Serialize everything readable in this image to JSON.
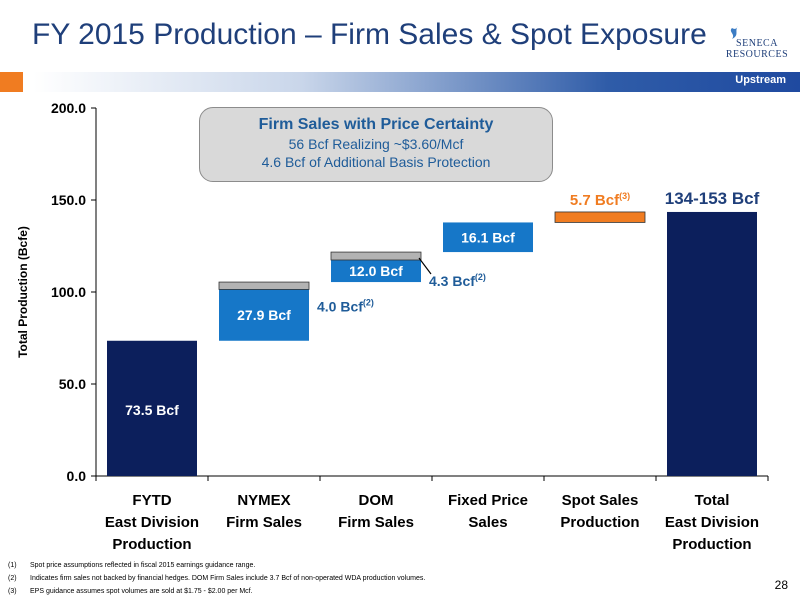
{
  "header": {
    "title": "FY 2015 Production – Firm Sales & Spot Exposure",
    "section_tag": "Upstream",
    "logo_text": [
      "SENECA",
      "RESOURCES"
    ]
  },
  "callout": {
    "title": "Firm Sales with Price Certainty",
    "line1": "56 Bcf Realizing ~$3.60/Mcf",
    "line2": "4.6 Bcf of Additional Basis Protection"
  },
  "footnotes": [
    {
      "num": "(1)",
      "text": "Spot price assumptions reflected in fiscal 2015 earnings guidance range."
    },
    {
      "num": "(2)",
      "text": "Indicates firm sales not backed by financial hedges.  DOM Firm Sales include 3.7 Bcf of non-operated WDA production volumes."
    },
    {
      "num": "(3)",
      "text": "EPS guidance assumes spot volumes are sold at $1.75 - $2.00 per Mcf."
    }
  ],
  "page_number": "28",
  "colors": {
    "navy": "#0c1f5c",
    "blue": "#1677c8",
    "gray": "#b3b3b3",
    "orange": "#f07c21",
    "title": "#1f3f7a"
  },
  "chart_data": {
    "type": "bar",
    "subtype": "waterfall",
    "ylabel": "Total Production (Bcfe)",
    "ylim": [
      0,
      200
    ],
    "yticks": [
      "0.0",
      "50.0",
      "100.0",
      "150.0",
      "200.0"
    ],
    "ytick_values": [
      0,
      50,
      100,
      150,
      200
    ],
    "categories": [
      [
        "FYTD",
        "East Division",
        "Production"
      ],
      [
        "NYMEX",
        "Firm Sales"
      ],
      [
        "DOM",
        "Firm Sales"
      ],
      [
        "Fixed Price",
        "Sales"
      ],
      [
        "Spot Sales",
        "Production"
      ],
      [
        "Total",
        "East Division",
        "Production"
      ]
    ],
    "segments": [
      {
        "category": 0,
        "base": 0,
        "value": 73.5,
        "color": "navy",
        "label": "73.5 Bcf",
        "label_inside": true
      },
      {
        "category": 1,
        "base": 73.5,
        "value": 27.9,
        "color": "blue",
        "label": "27.9 Bcf",
        "label_inside": true
      },
      {
        "category": 1,
        "base": 101.4,
        "value": 4.0,
        "color": "gray",
        "label": "4.0 Bcf",
        "sup": "(2)",
        "label_inside": false
      },
      {
        "category": 2,
        "base": 105.4,
        "value": 12.0,
        "color": "blue",
        "label": "12.0 Bcf",
        "label_inside": true
      },
      {
        "category": 2,
        "base": 117.4,
        "value": 4.3,
        "color": "gray",
        "label": "4.3 Bcf",
        "sup": "(2)",
        "label_inside": false
      },
      {
        "category": 3,
        "base": 121.7,
        "value": 16.1,
        "color": "blue",
        "label": "16.1 Bcf",
        "label_inside": true
      },
      {
        "category": 4,
        "base": 137.8,
        "value": 5.7,
        "color": "orange",
        "label": "5.7 Bcf",
        "sup": "(3)",
        "label_inside": false
      },
      {
        "category": 5,
        "base": 0,
        "value": 143.5,
        "color": "navy",
        "label": "134-153 Bcf",
        "label_inside": false
      }
    ]
  }
}
